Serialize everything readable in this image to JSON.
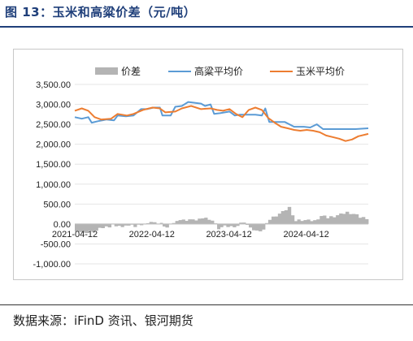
{
  "figure": {
    "title": "图 13：玉米和高粱价差（元/吨）",
    "source": "数据来源：iFinD 资讯、银河期货"
  },
  "chart_data": {
    "type": "bar+line",
    "title": "",
    "xlabel": "",
    "ylabel": "",
    "ylim": [
      -1000,
      3500
    ],
    "y_ticks": [
      "3,500.00",
      "3,000.00",
      "2,500.00",
      "2,000.00",
      "1,500.00",
      "1,000.00",
      "500.00",
      "0.00",
      "-500.00",
      "-1,000.00"
    ],
    "x_ticks": [
      "2021-04-12",
      "2022-04-12",
      "2023-04-12",
      "2024-04-12"
    ],
    "x_range": [
      "2021-04-12",
      "2025-01-31"
    ],
    "grid": "horizontal",
    "legend_position": "top",
    "legend": [
      "价差",
      "高粱平均价",
      "玉米平均价"
    ],
    "colors": {
      "价差": "#b4b4b4",
      "高粱平均价": "#5b9bd5",
      "玉米平均价": "#ed7d31"
    },
    "series": [
      {
        "name": "高粱平均价",
        "type": "line",
        "points": [
          [
            "2021-04-12",
            2680
          ],
          [
            "2021-05-15",
            2640
          ],
          [
            "2021-06-15",
            2680
          ],
          [
            "2021-07-01",
            2540
          ],
          [
            "2021-08-01",
            2580
          ],
          [
            "2021-09-10",
            2620
          ],
          [
            "2021-10-15",
            2600
          ],
          [
            "2021-11-01",
            2720
          ],
          [
            "2021-12-10",
            2700
          ],
          [
            "2022-01-15",
            2720
          ],
          [
            "2022-02-20",
            2880
          ],
          [
            "2022-03-20",
            2880
          ],
          [
            "2022-04-20",
            2920
          ],
          [
            "2022-05-20",
            2920
          ],
          [
            "2022-06-01",
            2720
          ],
          [
            "2022-07-10",
            2720
          ],
          [
            "2022-08-01",
            2940
          ],
          [
            "2022-09-01",
            2960
          ],
          [
            "2022-10-01",
            3060
          ],
          [
            "2022-11-01",
            3040
          ],
          [
            "2022-12-01",
            3020
          ],
          [
            "2022-12-20",
            2960
          ],
          [
            "2023-01-15",
            3000
          ],
          [
            "2023-02-01",
            2760
          ],
          [
            "2023-03-01",
            2780
          ],
          [
            "2023-04-15",
            2820
          ],
          [
            "2023-05-10",
            2720
          ],
          [
            "2023-06-01",
            2740
          ],
          [
            "2023-07-15",
            2740
          ],
          [
            "2023-08-15",
            2740
          ],
          [
            "2023-09-15",
            2720
          ],
          [
            "2023-10-01",
            2900
          ],
          [
            "2023-10-20",
            2560
          ],
          [
            "2023-11-15",
            2560
          ],
          [
            "2024-01-01",
            2560
          ],
          [
            "2024-02-15",
            2440
          ],
          [
            "2024-04-01",
            2440
          ],
          [
            "2024-05-01",
            2420
          ],
          [
            "2024-06-01",
            2500
          ],
          [
            "2024-07-01",
            2380
          ],
          [
            "2024-09-01",
            2380
          ],
          [
            "2024-10-15",
            2380
          ],
          [
            "2024-12-01",
            2380
          ],
          [
            "2025-01-31",
            2400
          ]
        ]
      },
      {
        "name": "玉米平均价",
        "type": "line",
        "points": [
          [
            "2021-04-12",
            2840
          ],
          [
            "2021-05-15",
            2900
          ],
          [
            "2021-06-15",
            2840
          ],
          [
            "2021-07-15",
            2680
          ],
          [
            "2021-08-15",
            2620
          ],
          [
            "2021-10-01",
            2640
          ],
          [
            "2021-11-01",
            2760
          ],
          [
            "2021-12-15",
            2720
          ],
          [
            "2022-01-15",
            2760
          ],
          [
            "2022-03-01",
            2860
          ],
          [
            "2022-04-15",
            2920
          ],
          [
            "2022-05-20",
            2900
          ],
          [
            "2022-06-15",
            2800
          ],
          [
            "2022-08-01",
            2820
          ],
          [
            "2022-09-01",
            2900
          ],
          [
            "2022-10-15",
            2960
          ],
          [
            "2022-12-01",
            2880
          ],
          [
            "2023-01-15",
            2900
          ],
          [
            "2023-02-15",
            2860
          ],
          [
            "2023-03-15",
            2840
          ],
          [
            "2023-04-15",
            2880
          ],
          [
            "2023-05-15",
            2760
          ],
          [
            "2023-06-15",
            2680
          ],
          [
            "2023-07-15",
            2860
          ],
          [
            "2023-08-15",
            2920
          ],
          [
            "2023-09-15",
            2860
          ],
          [
            "2023-10-15",
            2660
          ],
          [
            "2023-11-15",
            2540
          ],
          [
            "2023-12-15",
            2440
          ],
          [
            "2024-01-15",
            2400
          ],
          [
            "2024-02-15",
            2360
          ],
          [
            "2024-03-15",
            2340
          ],
          [
            "2024-04-15",
            2360
          ],
          [
            "2024-05-15",
            2340
          ],
          [
            "2024-06-15",
            2300
          ],
          [
            "2024-07-15",
            2220
          ],
          [
            "2024-08-15",
            2180
          ],
          [
            "2024-09-15",
            2140
          ],
          [
            "2024-10-15",
            2080
          ],
          [
            "2024-11-15",
            2120
          ],
          [
            "2024-12-15",
            2200
          ],
          [
            "2025-01-31",
            2260
          ]
        ]
      },
      {
        "name": "价差",
        "type": "bar",
        "points": [
          [
            "2021-04-12",
            -160
          ],
          [
            "2021-05-15",
            -240
          ],
          [
            "2021-06-15",
            -180
          ],
          [
            "2021-07-15",
            -160
          ],
          [
            "2021-08-15",
            -80
          ],
          [
            "2021-10-01",
            -40
          ],
          [
            "2021-11-01",
            -60
          ],
          [
            "2021-12-15",
            -40
          ],
          [
            "2022-01-15",
            -60
          ],
          [
            "2022-03-01",
            20
          ],
          [
            "2022-04-15",
            20
          ],
          [
            "2022-05-20",
            20
          ],
          [
            "2022-06-15",
            -80
          ],
          [
            "2022-08-01",
            100
          ],
          [
            "2022-09-01",
            80
          ],
          [
            "2022-10-15",
            100
          ],
          [
            "2022-12-01",
            140
          ],
          [
            "2023-01-15",
            100
          ],
          [
            "2023-02-15",
            -100
          ],
          [
            "2023-03-15",
            -60
          ],
          [
            "2023-04-15",
            -60
          ],
          [
            "2023-05-15",
            -40
          ],
          [
            "2023-06-15",
            60
          ],
          [
            "2023-07-15",
            -120
          ],
          [
            "2023-08-15",
            -180
          ],
          [
            "2023-09-15",
            -140
          ],
          [
            "2023-10-15",
            120
          ],
          [
            "2023-11-15",
            220
          ],
          [
            "2023-12-15",
            300
          ],
          [
            "2024-01-15",
            420
          ],
          [
            "2024-02-15",
            80
          ],
          [
            "2024-03-15",
            100
          ],
          [
            "2024-04-15",
            80
          ],
          [
            "2024-05-15",
            80
          ],
          [
            "2024-06-15",
            200
          ],
          [
            "2024-07-15",
            160
          ],
          [
            "2024-08-15",
            200
          ],
          [
            "2024-09-15",
            240
          ],
          [
            "2024-10-15",
            300
          ],
          [
            "2024-11-15",
            260
          ],
          [
            "2024-12-15",
            180
          ],
          [
            "2025-01-31",
            140
          ]
        ]
      }
    ]
  }
}
